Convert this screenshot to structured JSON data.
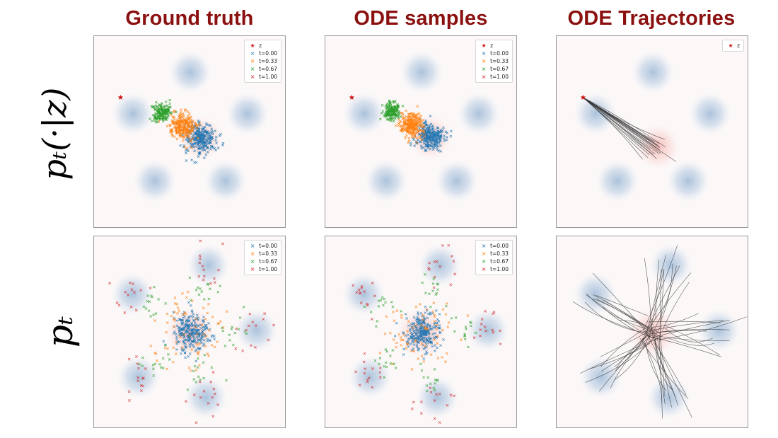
{
  "titles": {
    "col1": "Ground truth",
    "col2": "ODE samples",
    "col3": "ODE Trajectories",
    "color": "#8b1010"
  },
  "row_labels": {
    "top": "pₜ(·|z)",
    "bottom": "pₜ"
  },
  "legend": {
    "z_label": "z",
    "t_labels": [
      "t=0.00",
      "t=0.33",
      "t=0.67",
      "t=1.00"
    ],
    "colors": [
      "#1f77b4",
      "#ff7f0e",
      "#2ca02c",
      "#d62728"
    ],
    "z_color": "#cc1111"
  },
  "chart_data": [
    {
      "type": "scatter",
      "title": "Ground truth",
      "row": "pₜ(·|z)",
      "xlim": [
        -8,
        8
      ],
      "ylim": [
        -8,
        8
      ],
      "background_modes": [
        [
          0,
          5
        ],
        [
          4.76,
          1.55
        ],
        [
          2.94,
          -4.05
        ],
        [
          -2.94,
          -4.05
        ],
        [
          -4.76,
          1.55
        ]
      ],
      "z": [
        -5.8,
        2.9
      ],
      "series": [
        {
          "name": "t=0.00",
          "center": [
            0.9,
            -0.5
          ],
          "std": 0.65
        },
        {
          "name": "t=0.33",
          "center": [
            -0.7,
            0.5
          ],
          "std": 0.55
        },
        {
          "name": "t=0.67",
          "center": [
            -2.4,
            1.7
          ],
          "std": 0.38
        },
        {
          "name": "t=1.00",
          "center": [
            -5.8,
            2.9
          ],
          "std": 0.05
        }
      ]
    },
    {
      "type": "scatter",
      "title": "ODE samples",
      "row": "pₜ(·|z)",
      "xlim": [
        -8,
        8
      ],
      "ylim": [
        -8,
        8
      ],
      "background_modes": [
        [
          0,
          5
        ],
        [
          4.76,
          1.55
        ],
        [
          2.94,
          -4.05
        ],
        [
          -2.94,
          -4.05
        ],
        [
          -4.76,
          1.55
        ]
      ],
      "z": [
        -5.8,
        2.9
      ],
      "series": [
        {
          "name": "t=0.00",
          "center": [
            0.7,
            -0.4
          ],
          "std": 0.6
        },
        {
          "name": "t=0.33",
          "center": [
            -0.8,
            0.6
          ],
          "std": 0.5
        },
        {
          "name": "t=0.67",
          "center": [
            -2.5,
            1.8
          ],
          "std": 0.35
        },
        {
          "name": "t=1.00",
          "center": [
            -5.8,
            2.9
          ],
          "std": 0.05
        }
      ]
    },
    {
      "type": "line",
      "title": "ODE Trajectories",
      "row": "pₜ(·|z)",
      "xlim": [
        -8,
        8
      ],
      "ylim": [
        -8,
        8
      ],
      "background_modes": [
        [
          0,
          5
        ],
        [
          4.76,
          1.55
        ],
        [
          2.94,
          -4.05
        ],
        [
          -2.94,
          -4.05
        ],
        [
          -4.76,
          1.55
        ]
      ],
      "z": [
        -5.8,
        2.9
      ],
      "source_center": [
        0.4,
        -1.2
      ],
      "n_trajectories": 20
    },
    {
      "type": "scatter",
      "title": "Ground truth",
      "row": "pₜ",
      "xlim": [
        -8,
        8
      ],
      "ylim": [
        -8,
        8
      ],
      "modes": [
        [
          1.5,
          5.6
        ],
        [
          5.5,
          0.2
        ],
        [
          1.3,
          -5.4
        ],
        [
          -4.3,
          -3.7
        ],
        [
          -4.8,
          3.2
        ]
      ],
      "series": [
        {
          "name": "t=0.00",
          "spread": 0.0,
          "std": 0.75
        },
        {
          "name": "t=0.33",
          "spread": 0.33,
          "std": 0.95
        },
        {
          "name": "t=0.67",
          "spread": 0.67,
          "std": 0.6
        },
        {
          "name": "t=1.00",
          "spread": 1.0,
          "std": 0.8
        }
      ]
    },
    {
      "type": "scatter",
      "title": "ODE samples",
      "row": "pₜ",
      "xlim": [
        -8,
        8
      ],
      "ylim": [
        -8,
        8
      ],
      "modes": [
        [
          1.5,
          5.6
        ],
        [
          5.5,
          0.2
        ],
        [
          1.3,
          -5.4
        ],
        [
          -4.3,
          -3.7
        ],
        [
          -4.8,
          3.2
        ]
      ],
      "series": [
        {
          "name": "t=0.00",
          "spread": 0.0,
          "std": 0.75
        },
        {
          "name": "t=0.33",
          "spread": 0.33,
          "std": 0.95
        },
        {
          "name": "t=0.67",
          "spread": 0.67,
          "std": 0.65
        },
        {
          "name": "t=1.00",
          "spread": 1.0,
          "std": 0.85
        }
      ]
    },
    {
      "type": "line",
      "title": "ODE Trajectories",
      "row": "pₜ",
      "xlim": [
        -8,
        8
      ],
      "ylim": [
        -8,
        8
      ],
      "modes": [
        [
          1.5,
          5.6
        ],
        [
          5.5,
          0.2
        ],
        [
          1.3,
          -5.4
        ],
        [
          -4.3,
          -3.7
        ],
        [
          -4.8,
          3.2
        ]
      ],
      "n_trajectories": 60
    }
  ]
}
